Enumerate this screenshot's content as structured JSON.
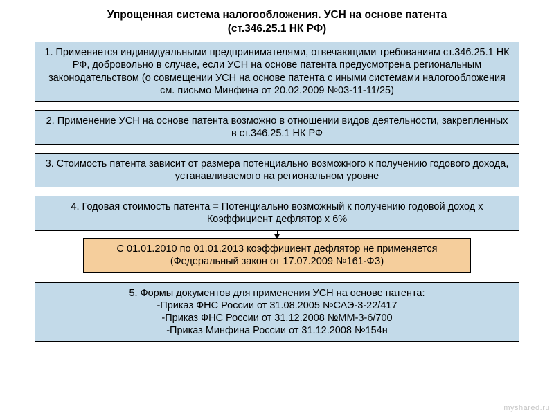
{
  "title_line1": "Упрощенная система налогообложения. УСН на основе патента",
  "title_line2": "(ст.346.25.1 НК РФ)",
  "boxes": {
    "b1": "1. Применяется индивидуальными предпринимателями, отвечающими требованиям ст.346.25.1 НК РФ, добровольно в случае, если УСН на основе патента предусмотрена региональным законодательством (о совмещении УСН на основе патента с иными системами налогообложения см. письмо Минфина от 20.02.2009 №03-11-11/25)",
    "b2": "2. Применение УСН на основе патента возможно в отношении видов деятельности, закрепленных в ст.346.25.1 НК РФ",
    "b3": "3. Стоимость патента зависит от размера потенциально возможного к получению годового дохода, устанавливаемого на региональном уровне",
    "b4": "4. Годовая стоимость патента = Потенциально возможный к получению годовой доход х Коэффициент дефлятор х 6%",
    "orange_l1": "С 01.01.2010 по 01.01.2013 коэффициент дефлятор не применяется",
    "orange_l2": "(Федеральный закон от 17.07.2009 №161-ФЗ)",
    "b5_l1": "5. Формы документов для применения УСН на основе патента:",
    "b5_l2": "-Приказ ФНС России от 31.08.2005 №САЭ-3-22/417",
    "b5_l3": "-Приказ ФНС России от 31.12.2008 №ММ-3-6/700",
    "b5_l4": "-Приказ Минфина России от 31.12.2008 №154н"
  },
  "watermark": "myshared.ru",
  "colors": {
    "box_bg": "#c3dae9",
    "orange_bg": "#f5ce9c",
    "border": "#000000",
    "text": "#000000",
    "watermark": "#c8c8c8"
  }
}
